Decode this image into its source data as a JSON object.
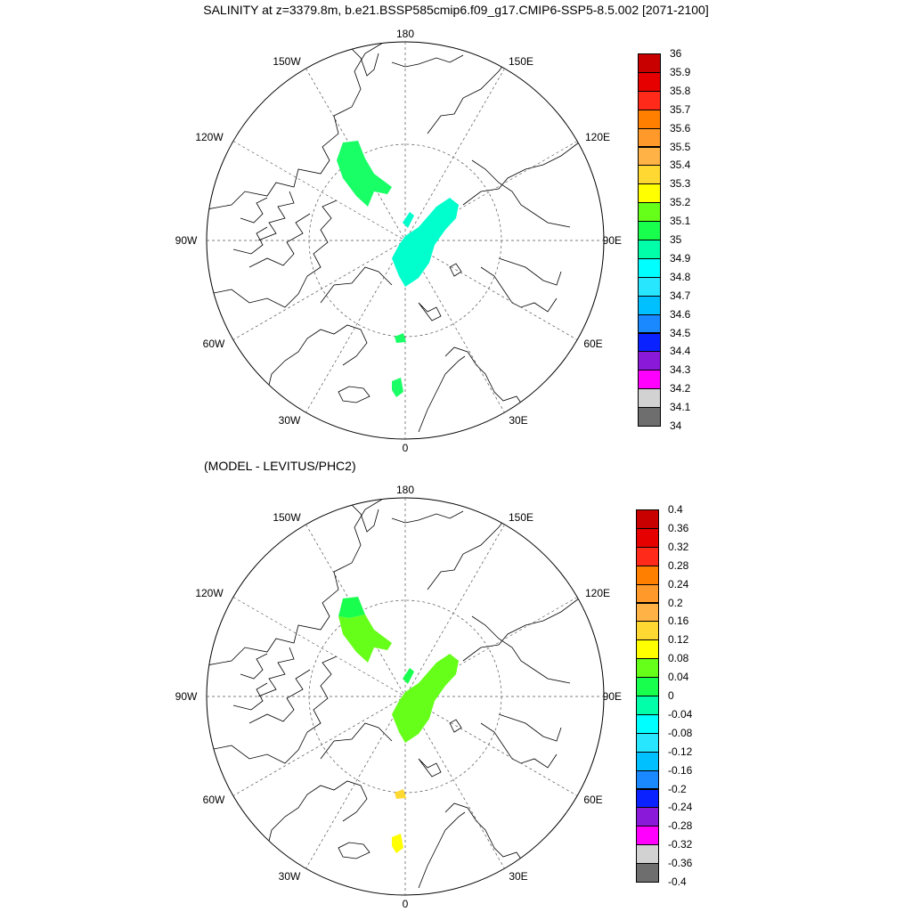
{
  "title": "SALINITY at z=3379.8m, b.e21.BSSP585cmip6.f09_g17.CMIP6-SSP5-8.5.002 [2071-2100]",
  "subtitle": "(MODEL - LEVITUS/PHC2)",
  "map_labels": {
    "lon_180": "180",
    "lon_150w": "150W",
    "lon_150e": "150E",
    "lon_120w": "120W",
    "lon_120e": "120E",
    "lon_90w": "90W",
    "lon_90e": "90E",
    "lon_60w": "60W",
    "lon_60e": "60E",
    "lon_30w": "30W",
    "lon_30e": "30E",
    "lon_0": "0"
  },
  "colorbar_top": {
    "labels": [
      "36",
      "35.9",
      "35.8",
      "35.7",
      "35.6",
      "35.5",
      "35.4",
      "35.3",
      "35.2",
      "35.1",
      "35",
      "34.9",
      "34.8",
      "34.7",
      "34.6",
      "34.5",
      "34.4",
      "34.3",
      "34.2",
      "34.1",
      "34"
    ],
    "colors": [
      "#c80000",
      "#e60000",
      "#ff2a1a",
      "#ff7f00",
      "#ff9a2a",
      "#ffb347",
      "#ffd932",
      "#ffff00",
      "#66ff1a",
      "#19ff4d",
      "#00ffa8",
      "#00ffff",
      "#29e6ff",
      "#00c0ff",
      "#1a88ff",
      "#0a22ff",
      "#8a19d9",
      "#ff00ff",
      "#d2d2d2",
      "#6e6e6e"
    ]
  },
  "colorbar_bottom": {
    "labels": [
      "0.4",
      "0.36",
      "0.32",
      "0.28",
      "0.24",
      "0.2",
      "0.16",
      "0.12",
      "0.08",
      "0.04",
      "0",
      "-0.04",
      "-0.08",
      "-0.12",
      "-0.16",
      "-0.2",
      "-0.24",
      "-0.28",
      "-0.32",
      "-0.36",
      "-0.4"
    ],
    "colors": [
      "#c80000",
      "#e60000",
      "#ff2a1a",
      "#ff7f00",
      "#ff9a2a",
      "#ffb347",
      "#ffd932",
      "#ffff00",
      "#66ff1a",
      "#19ff4d",
      "#00ffa8",
      "#00ffff",
      "#29e6ff",
      "#00c0ff",
      "#1a88ff",
      "#0a22ff",
      "#8a19d9",
      "#ff00ff",
      "#d2d2d2",
      "#6e6e6e"
    ]
  },
  "fields_top": {
    "color_arctic": "#00ffcc",
    "color_baffin": "#19ff66",
    "color_nordic": "#19ff66"
  },
  "fields_bottom": {
    "color_arctic": "#66ff1a",
    "color_baffin_upper": "#19ff4d",
    "color_baffin_lower": "#66ff1a",
    "color_nordic": "#ffff00",
    "color_small": "#ffd932"
  }
}
